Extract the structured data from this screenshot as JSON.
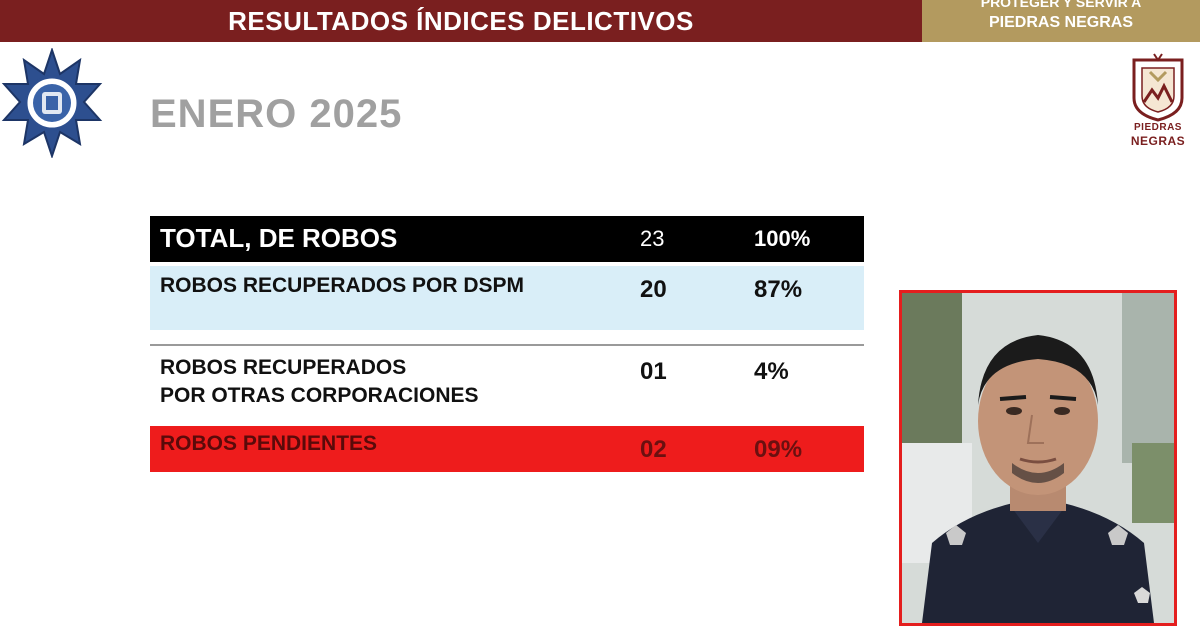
{
  "header": {
    "title": "RESULTADOS ÍNDICES DELICTIVOS",
    "slogan_line1": "PROTEGER Y SERVIR A",
    "slogan_line2": "PIEDRAS NEGRAS"
  },
  "city_logo": {
    "name_line1": "PIEDRAS",
    "name_line2": "NEGRAS"
  },
  "period": "ENERO 2025",
  "stats": {
    "total": {
      "label": "TOTAL, DE ROBOS",
      "count": "23",
      "percent": "100%"
    },
    "dspm": {
      "label": "ROBOS RECUPERADOS POR DSPM",
      "count": "20",
      "percent": "87%"
    },
    "otras": {
      "label_line1": "ROBOS RECUPERADOS",
      "label_line2": "POR OTRAS CORPORACIONES",
      "count": "01",
      "percent": "4%"
    },
    "pendientes": {
      "label": "ROBOS PENDIENTES",
      "count": "02",
      "percent": "09%"
    }
  },
  "colors": {
    "header_bg": "#7a1f1f",
    "slogan_bg": "#b39a5f",
    "total_row_bg": "#000000",
    "dspm_row_bg": "#d9eef8",
    "pending_row_bg": "#ee1c1c",
    "photo_border": "#e41e1e"
  },
  "icons": {
    "police_badge": "police-star-badge-icon",
    "city_logo": "piedras-negras-coat-of-arms-icon"
  }
}
